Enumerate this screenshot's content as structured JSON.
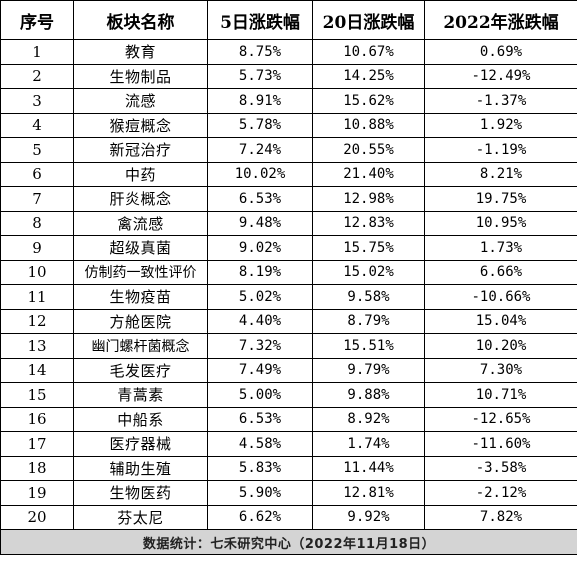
{
  "table": {
    "headers": [
      "序号",
      "板块名称",
      "5日涨跌幅",
      "20日涨跌幅",
      "2022年涨跌幅"
    ],
    "rows": [
      [
        "1",
        "教育",
        "8.75%",
        "10.67%",
        "0.69%"
      ],
      [
        "2",
        "生物制品",
        "5.73%",
        "14.25%",
        "-12.49%"
      ],
      [
        "3",
        "流感",
        "8.91%",
        "15.62%",
        "-1.37%"
      ],
      [
        "4",
        "猴痘概念",
        "5.78%",
        "10.88%",
        "1.92%"
      ],
      [
        "5",
        "新冠治疗",
        "7.24%",
        "20.55%",
        "-1.19%"
      ],
      [
        "6",
        "中药",
        "10.02%",
        "21.40%",
        "8.21%"
      ],
      [
        "7",
        "肝炎概念",
        "6.53%",
        "12.98%",
        "19.75%"
      ],
      [
        "8",
        "禽流感",
        "9.48%",
        "12.83%",
        "10.95%"
      ],
      [
        "9",
        "超级真菌",
        "9.02%",
        "15.75%",
        "1.73%"
      ],
      [
        "10",
        "仿制药一致性评价",
        "8.19%",
        "15.02%",
        "6.66%"
      ],
      [
        "11",
        "生物疫苗",
        "5.02%",
        "9.58%",
        "-10.66%"
      ],
      [
        "12",
        "方舱医院",
        "4.40%",
        "8.79%",
        "15.04%"
      ],
      [
        "13",
        "幽门螺杆菌概念",
        "7.32%",
        "15.51%",
        "10.20%"
      ],
      [
        "14",
        "毛发医疗",
        "7.49%",
        "9.79%",
        "7.30%"
      ],
      [
        "15",
        "青蒿素",
        "5.00%",
        "9.88%",
        "10.71%"
      ],
      [
        "16",
        "中船系",
        "6.53%",
        "8.92%",
        "-12.65%"
      ],
      [
        "17",
        "医疗器械",
        "4.58%",
        "1.74%",
        "-11.60%"
      ],
      [
        "18",
        "辅助生殖",
        "5.83%",
        "11.44%",
        "-3.58%"
      ],
      [
        "19",
        "生物医药",
        "5.90%",
        "12.81%",
        "-2.12%"
      ],
      [
        "20",
        "芬太尼",
        "6.62%",
        "9.92%",
        "7.82%"
      ]
    ],
    "footer": "数据统计：七禾研究中心（2022年11月18日）"
  }
}
